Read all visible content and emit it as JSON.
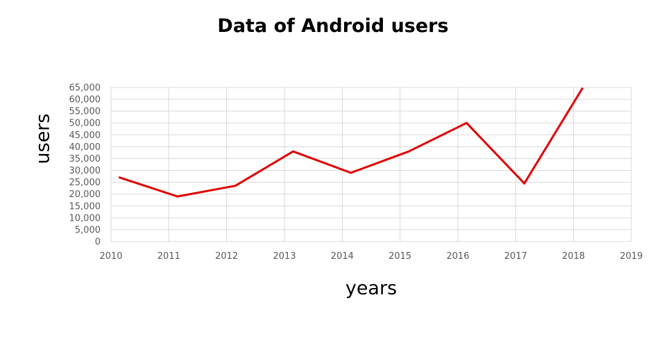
{
  "chart_data": {
    "type": "line",
    "title": "Data of Android users",
    "xlabel": "years",
    "ylabel": "users",
    "xlim": [
      2010,
      2019
    ],
    "ylim": [
      0,
      65000
    ],
    "x_ticks": [
      "2010",
      "2011",
      "2012",
      "2013",
      "2014",
      "2015",
      "2016",
      "2017",
      "2018",
      "2019"
    ],
    "y_ticks": [
      "0",
      "5,000",
      "10,000",
      "15,000",
      "20,000",
      "25,000",
      "30,000",
      "35,000",
      "40,000",
      "45,000",
      "50,000",
      "55,000",
      "60,000",
      "65,000"
    ],
    "grid": true,
    "legend": "none",
    "series": [
      {
        "color": "#e00000",
        "x": [
          2010.15,
          2011.15,
          2012.15,
          2013.15,
          2014.15,
          2015.15,
          2016.15,
          2017.15,
          2018.15
        ],
        "y": [
          27000,
          19000,
          23500,
          38000,
          29000,
          38000,
          50000,
          24500,
          64500
        ]
      }
    ]
  }
}
